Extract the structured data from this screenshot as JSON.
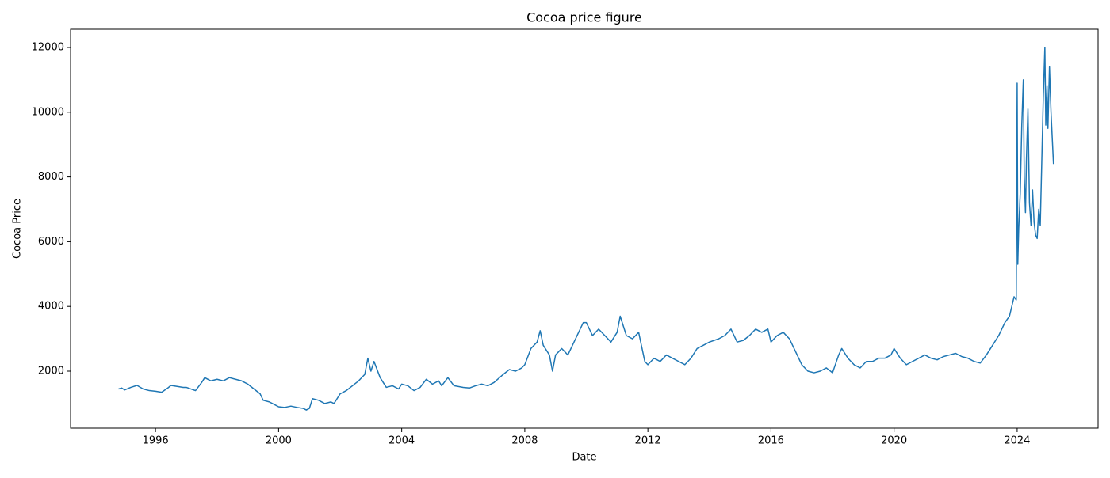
{
  "chart_data": {
    "type": "line",
    "title": "Cocoa price figure",
    "x_label": "Date",
    "y_label": "Cocoa Price",
    "color": "#1f77b4",
    "xlim": [
      1993.24,
      2026.63
    ],
    "xticks": [
      1996,
      2000,
      2004,
      2008,
      2012,
      2016,
      2020,
      2024
    ],
    "ylim": [
      240,
      12562
    ],
    "yticks": [
      2000,
      4000,
      6000,
      8000,
      10000,
      12000
    ],
    "x": [
      1994.8,
      1994.9,
      1995.0,
      1995.2,
      1995.4,
      1995.6,
      1995.8,
      1996.0,
      1996.2,
      1996.4,
      1996.5,
      1996.7,
      1996.9,
      1997.0,
      1997.3,
      1997.5,
      1997.6,
      1997.8,
      1998.0,
      1998.2,
      1998.4,
      1998.6,
      1998.8,
      1999.0,
      1999.2,
      1999.4,
      1999.5,
      1999.7,
      1999.9,
      2000.0,
      2000.2,
      2000.4,
      2000.6,
      2000.8,
      2000.9,
      2001.0,
      2001.1,
      2001.3,
      2001.5,
      2001.7,
      2001.8,
      2002.0,
      2002.2,
      2002.4,
      2002.6,
      2002.8,
      2002.9,
      2003.0,
      2003.1,
      2003.3,
      2003.5,
      2003.7,
      2003.9,
      2004.0,
      2004.2,
      2004.4,
      2004.6,
      2004.8,
      2005.0,
      2005.2,
      2005.3,
      2005.5,
      2005.7,
      2006.0,
      2006.2,
      2006.4,
      2006.6,
      2006.8,
      2007.0,
      2007.3,
      2007.5,
      2007.7,
      2007.9,
      2008.0,
      2008.2,
      2008.4,
      2008.5,
      2008.6,
      2008.8,
      2008.9,
      2009.0,
      2009.2,
      2009.4,
      2009.6,
      2009.8,
      2009.9,
      2010.0,
      2010.2,
      2010.4,
      2010.6,
      2010.8,
      2011.0,
      2011.1,
      2011.3,
      2011.5,
      2011.7,
      2011.9,
      2012.0,
      2012.2,
      2012.4,
      2012.6,
      2012.8,
      2013.0,
      2013.2,
      2013.4,
      2013.6,
      2013.8,
      2014.0,
      2014.3,
      2014.5,
      2014.7,
      2014.9,
      2015.1,
      2015.3,
      2015.5,
      2015.7,
      2015.9,
      2016.0,
      2016.2,
      2016.4,
      2016.6,
      2016.8,
      2017.0,
      2017.2,
      2017.4,
      2017.6,
      2017.8,
      2018.0,
      2018.2,
      2018.3,
      2018.5,
      2018.7,
      2018.9,
      2019.1,
      2019.3,
      2019.5,
      2019.7,
      2019.9,
      2020.0,
      2020.2,
      2020.4,
      2020.6,
      2020.8,
      2021.0,
      2021.2,
      2021.4,
      2021.6,
      2021.8,
      2022.0,
      2022.2,
      2022.4,
      2022.6,
      2022.8,
      2023.0,
      2023.2,
      2023.4,
      2023.6,
      2023.75,
      2023.85,
      2023.9,
      2023.97,
      2024.0,
      2024.02,
      2024.05,
      2024.1,
      2024.15,
      2024.2,
      2024.23,
      2024.27,
      2024.3,
      2024.35,
      2024.4,
      2024.45,
      2024.5,
      2024.55,
      2024.6,
      2024.65,
      2024.7,
      2024.75,
      2024.8,
      2024.85,
      2024.9,
      2024.93,
      2024.97,
      2025.0,
      2025.05,
      2025.1,
      2025.15,
      2025.18
    ],
    "values": [
      1450,
      1480,
      1420,
      1500,
      1560,
      1450,
      1400,
      1380,
      1350,
      1480,
      1560,
      1530,
      1500,
      1500,
      1400,
      1650,
      1800,
      1700,
      1750,
      1700,
      1800,
      1750,
      1700,
      1600,
      1450,
      1300,
      1100,
      1050,
      950,
      900,
      880,
      920,
      880,
      850,
      800,
      850,
      1150,
      1100,
      1000,
      1050,
      1000,
      1300,
      1400,
      1550,
      1700,
      1900,
      2400,
      2000,
      2300,
      1800,
      1500,
      1550,
      1450,
      1600,
      1550,
      1400,
      1500,
      1750,
      1600,
      1700,
      1550,
      1800,
      1550,
      1500,
      1480,
      1550,
      1600,
      1550,
      1650,
      1900,
      2050,
      2000,
      2100,
      2200,
      2700,
      2900,
      3250,
      2800,
      2500,
      2000,
      2500,
      2700,
      2500,
      2900,
      3300,
      3500,
      3500,
      3100,
      3300,
      3100,
      2900,
      3200,
      3700,
      3100,
      3000,
      3200,
      2300,
      2200,
      2400,
      2300,
      2500,
      2400,
      2300,
      2200,
      2400,
      2700,
      2800,
      2900,
      3000,
      3100,
      3300,
      2900,
      2950,
      3100,
      3300,
      3200,
      3300,
      2900,
      3100,
      3200,
      3000,
      2600,
      2200,
      2000,
      1950,
      2000,
      2100,
      1950,
      2500,
      2700,
      2400,
      2200,
      2100,
      2300,
      2300,
      2400,
      2400,
      2500,
      2700,
      2400,
      2200,
      2300,
      2400,
      2500,
      2400,
      2350,
      2450,
      2500,
      2550,
      2450,
      2400,
      2300,
      2250,
      2500,
      2800,
      3100,
      3500,
      3700,
      4100,
      4300,
      4200,
      10900,
      5300,
      6400,
      7500,
      9600,
      11000,
      8000,
      6900,
      8500,
      10100,
      7200,
      6500,
      7600,
      6600,
      6200,
      6100,
      7000,
      6500,
      8500,
      10500,
      12000,
      9600,
      10800,
      9500,
      11400,
      10000,
      9000,
      8400
    ]
  }
}
